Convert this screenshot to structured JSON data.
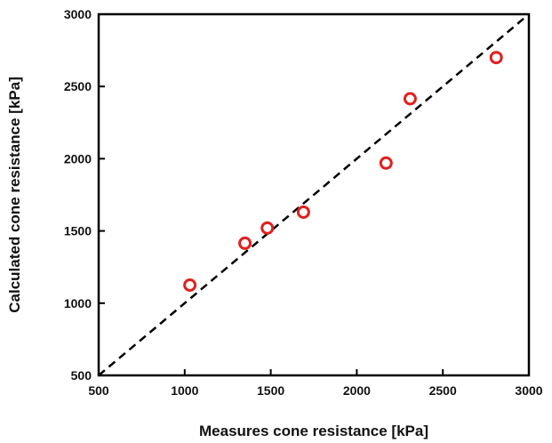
{
  "chart_data": {
    "type": "scatter",
    "xlabel": "Measures cone resistance [kPa]",
    "ylabel": "Calculated cone resistance [kPa]",
    "xlim": [
      500,
      3000
    ],
    "ylim": [
      500,
      3000
    ],
    "x_ticks": [
      500,
      1000,
      1500,
      2000,
      2500,
      3000
    ],
    "y_ticks": [
      500,
      1000,
      1500,
      2000,
      2500,
      3000
    ],
    "grid": false,
    "legend": "none",
    "reference_line": {
      "style": "dashed",
      "from": [
        500,
        500
      ],
      "to": [
        3000,
        3000
      ],
      "color": "#000000"
    },
    "marker": {
      "shape": "hollow-circle",
      "color": "#e02020"
    },
    "series": [
      {
        "points": [
          {
            "x": 1030,
            "y": 1125
          },
          {
            "x": 1350,
            "y": 1415
          },
          {
            "x": 1480,
            "y": 1520
          },
          {
            "x": 1690,
            "y": 1630
          },
          {
            "x": 2170,
            "y": 1970
          },
          {
            "x": 2310,
            "y": 2415
          },
          {
            "x": 2810,
            "y": 2700
          }
        ]
      }
    ]
  }
}
